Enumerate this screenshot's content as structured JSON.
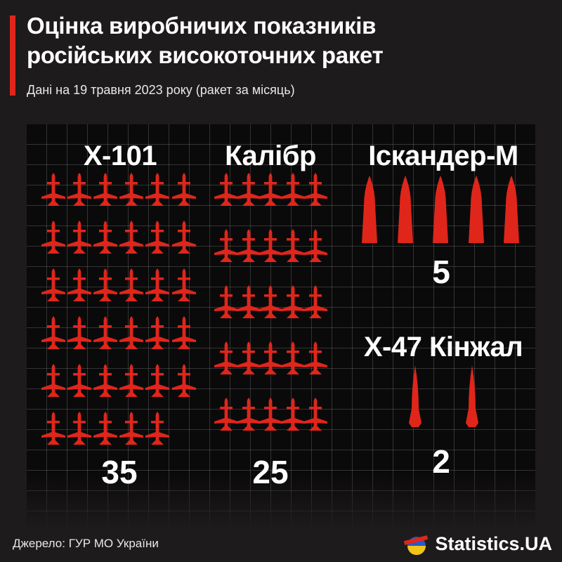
{
  "header": {
    "title_line1": "Оцінка виробничих показників",
    "title_line2": "російських високоточних ракет",
    "subtitle": "Дані на 19 травня 2023 року (ракет за місяць)"
  },
  "colors": {
    "accent": "#e0261b",
    "background": "#1e1b1c",
    "panel": "#0b0a0b",
    "text": "#ffffff"
  },
  "chart_data": {
    "type": "pictogram",
    "unit": "ракет за місяць",
    "categories": [
      "Х-101",
      "Калібр",
      "Іскандер-М",
      "Х-47 Кінжал"
    ],
    "values": [
      35,
      25,
      5,
      2
    ],
    "value_labels": [
      "35",
      "25",
      "5",
      "2"
    ],
    "icon_names": [
      "cruise-missile-icon",
      "cruise-missile-icon",
      "ballistic-missile-icon",
      "hypersonic-missile-icon"
    ]
  },
  "footer": {
    "source": "Джерело: ГУР МО України",
    "brand": "Statistics.UA",
    "logo_icon": "statistics-ua-logo-icon"
  }
}
